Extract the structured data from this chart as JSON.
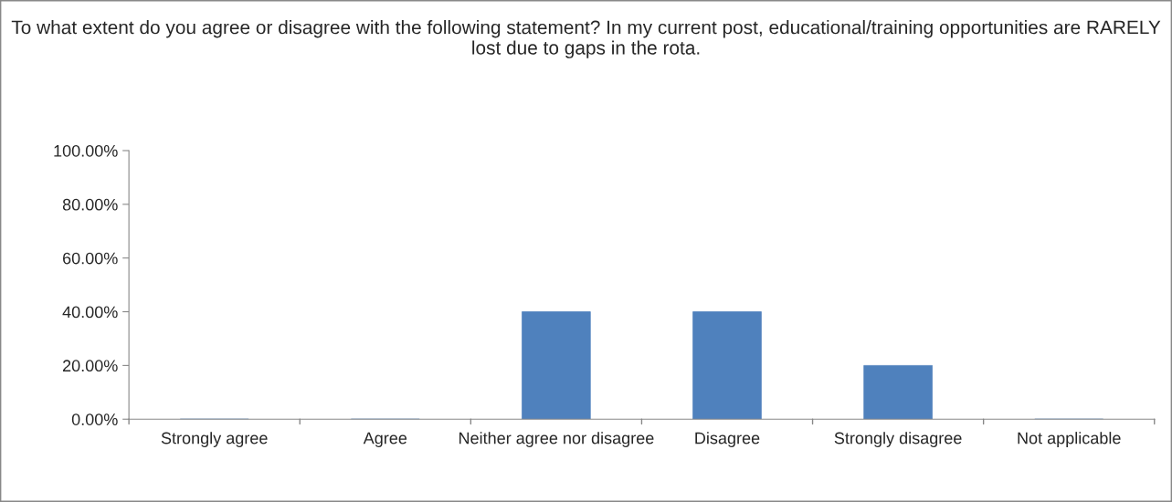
{
  "chart_data": {
    "type": "bar",
    "title": "To what extent do you agree or disagree with the following statement? In my current post, educational/training opportunities are RARELY lost due to gaps in the rota.",
    "categories": [
      "Strongly agree",
      "Agree",
      "Neither agree nor disagree",
      "Disagree",
      "Strongly disagree",
      "Not applicable"
    ],
    "values": [
      0,
      0,
      40,
      40,
      20,
      0
    ],
    "color": "#4f81bd",
    "ylim": [
      0,
      100
    ],
    "yticks": [
      {
        "value": 0,
        "label": "0.00%"
      },
      {
        "value": 20,
        "label": "20.00%"
      },
      {
        "value": 40,
        "label": "40.00%"
      },
      {
        "value": 60,
        "label": "60.00%"
      },
      {
        "value": 80,
        "label": "80.00%"
      },
      {
        "value": 100,
        "label": "100.00%"
      }
    ],
    "grid": false
  }
}
